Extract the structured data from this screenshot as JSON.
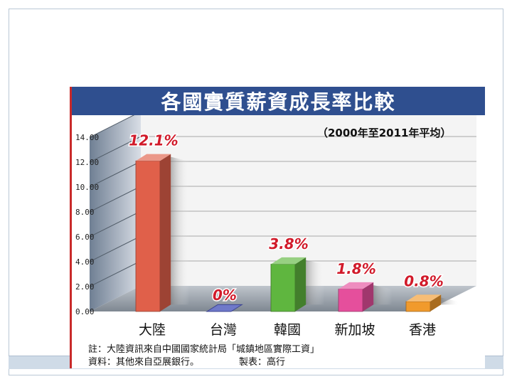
{
  "chart_data": {
    "type": "bar",
    "title": "各國實質薪資成長率比較",
    "subtitle": "（2000年至2011年平均）",
    "categories": [
      "大陸",
      "台灣",
      "韓國",
      "新加坡",
      "香港"
    ],
    "values": [
      12.1,
      0,
      3.8,
      1.8,
      0.8
    ],
    "data_labels": [
      "12.1%",
      "0%",
      "3.8%",
      "1.8%",
      "0.8%"
    ],
    "y_ticks": [
      "0.00",
      "2.00",
      "4.00",
      "6.00",
      "8.00",
      "10.00",
      "12.00",
      "14.00"
    ],
    "ylim": [
      0,
      14
    ],
    "grid": true,
    "bar_colors": [
      "#e0604a",
      "#6f79c9",
      "#5fb63f",
      "#e54f9c",
      "#f19a2c"
    ],
    "xlabel": "",
    "ylabel": ""
  },
  "notes": {
    "line1": "註：大陸資訊來自中國國家統計局「城鎮地區實際工資」",
    "line2_left": "資料：其他來自亞展銀行。",
    "line2_right": "製表：高行"
  },
  "colors": {
    "title_band": "#2f4f8f",
    "label_red": "#d11a2a",
    "slide_border": "#b9c7d6"
  }
}
